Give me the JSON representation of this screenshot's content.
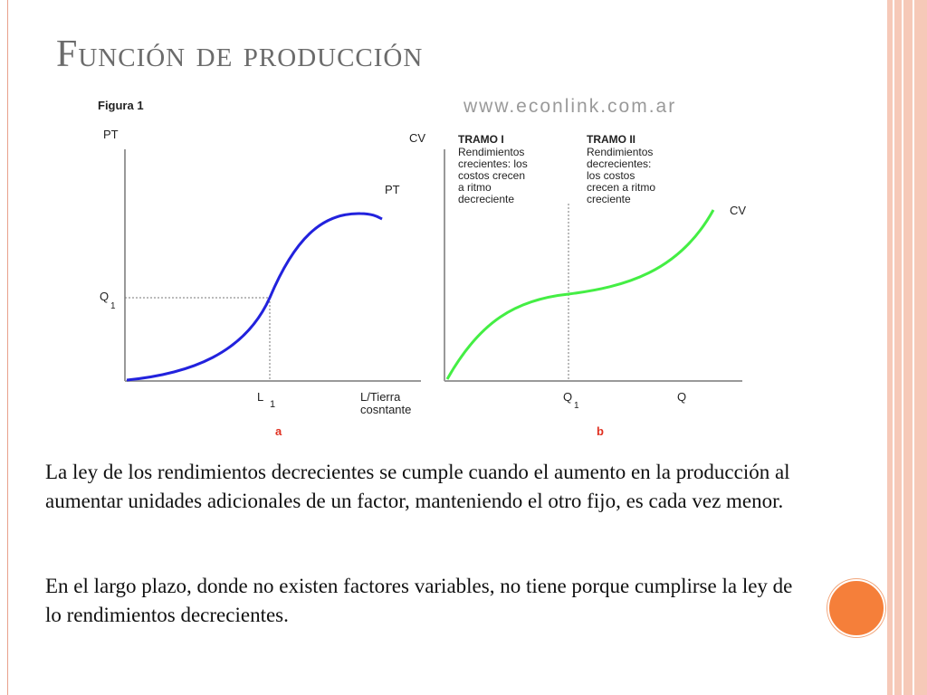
{
  "slide": {
    "title": "Función de producción",
    "paragraphs": [
      "La ley de los rendimientos decrecientes se cumple cuando el aumento en la producción al aumentar unidades adicionales de un factor, manteniendo el otro fijo, es cada vez menor.",
      "En el largo plazo, donde no existen factores variables, no tiene porque cumplirse la ley de lo rendimientos decrecientes."
    ]
  },
  "figure": {
    "caption": "Figura 1",
    "watermark": "www.econlink.com.ar",
    "panel_a": {
      "y_label": "PT",
      "curve_label": "PT",
      "q_label": "Q",
      "q_sub": "1",
      "l_label": "L",
      "l_sub": "1",
      "x_label_1": "L/Tierra",
      "x_label_2": "cosntante",
      "panel_letter": "a"
    },
    "panel_b": {
      "y_label": "CV",
      "curve_label": "CV",
      "tramo1_title": "TRAMO I",
      "tramo1_lines": [
        "Rendimientos",
        "crecientes: los",
        "costos crecen",
        "a ritmo",
        "decreciente"
      ],
      "tramo2_title": "TRAMO II",
      "tramo2_lines": [
        "Rendimientos",
        "decrecientes:",
        "los costos",
        "crecen a ritmo",
        "creciente"
      ],
      "q1_label": "Q",
      "q1_sub": "1",
      "q_label": "Q",
      "panel_letter": "b"
    }
  },
  "colors": {
    "pt_curve": "#2222dd",
    "cv_curve": "#44ee44",
    "panel_letter": "#e03020",
    "accent_dot": "#f57f3a",
    "frame": "#f6c9b8"
  }
}
